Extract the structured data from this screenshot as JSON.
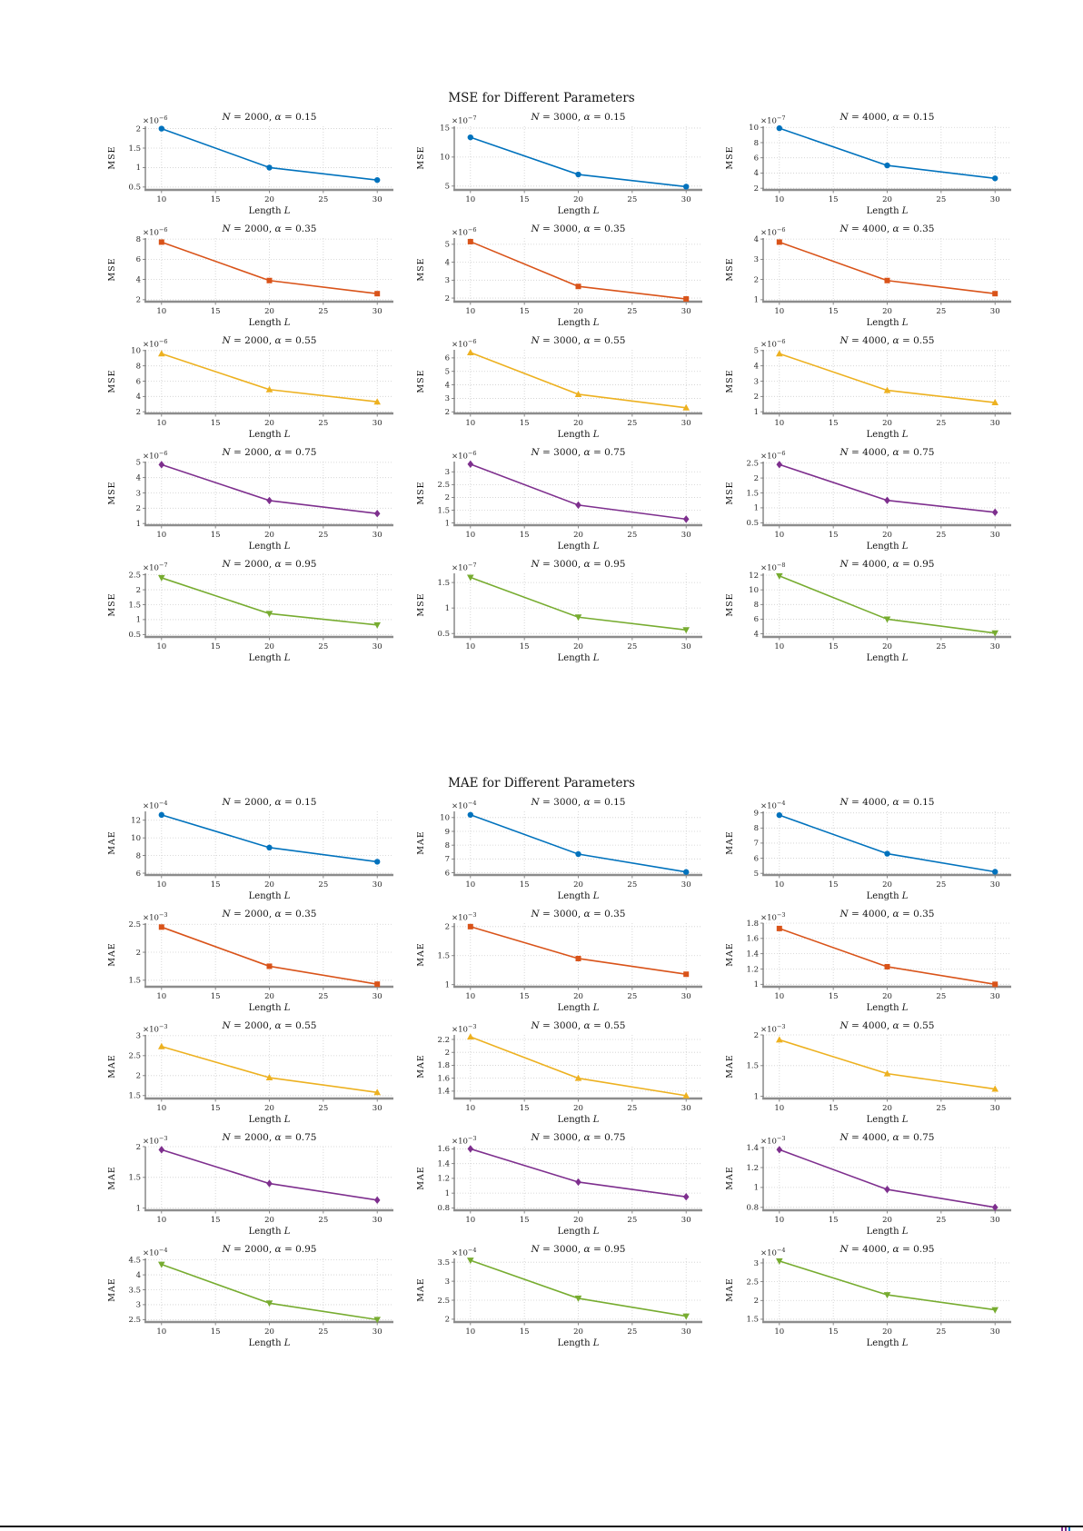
{
  "page": {
    "background": "#ffffff",
    "footer": {
      "rule_color": "#111111",
      "fragment_colors": [
        "#7E2F8E",
        "#7E2F8E",
        "#0072BD"
      ]
    }
  },
  "chart_data": [
    {
      "id": "mse",
      "type": "line",
      "title": "MSE for Different Parameters",
      "ylabel": "MSE",
      "xlabel": "Length L",
      "x": [
        10,
        20,
        30
      ],
      "xticks": [
        10,
        15,
        20,
        25,
        30
      ],
      "xlim": [
        8.5,
        31.5
      ],
      "grid": "dotted",
      "legend": "none",
      "columns": [
        "2000",
        "3000",
        "4000"
      ],
      "rows": [
        {
          "alpha": "0.15",
          "color": "#0072BD",
          "marker": "circle",
          "cells": [
            {
              "n": "2000",
              "exponent": -6,
              "ylim": [
                0.45,
                2.06
              ],
              "yticks": [
                0.5,
                1,
                1.5,
                2
              ],
              "values": [
                2.0,
                1.0,
                0.68
              ]
            },
            {
              "n": "3000",
              "exponent": -7,
              "ylim": [
                4.5,
                15.3
              ],
              "yticks": [
                5,
                10,
                15
              ],
              "values": [
                13.4,
                7.0,
                4.9
              ]
            },
            {
              "n": "4000",
              "exponent": -7,
              "ylim": [
                1.9,
                10.15
              ],
              "yticks": [
                2,
                4,
                6,
                8,
                10
              ],
              "values": [
                9.9,
                5.0,
                3.3
              ]
            }
          ]
        },
        {
          "alpha": "0.35",
          "color": "#D95319",
          "marker": "square",
          "cells": [
            {
              "n": "2000",
              "exponent": -6,
              "ylim": [
                1.9,
                8.1
              ],
              "yticks": [
                2,
                4,
                6,
                8
              ],
              "values": [
                7.7,
                3.9,
                2.6
              ]
            },
            {
              "n": "3000",
              "exponent": -6,
              "ylim": [
                1.85,
                5.35
              ],
              "yticks": [
                2,
                3,
                4,
                5
              ],
              "values": [
                5.15,
                2.65,
                1.95
              ]
            },
            {
              "n": "4000",
              "exponent": -6,
              "ylim": [
                0.95,
                4.05
              ],
              "yticks": [
                1,
                2,
                3,
                4
              ],
              "values": [
                3.85,
                1.95,
                1.3
              ]
            }
          ]
        },
        {
          "alpha": "0.55",
          "color": "#EDB120",
          "marker": "triangle-up",
          "cells": [
            {
              "n": "2000",
              "exponent": -6,
              "ylim": [
                1.9,
                10.1
              ],
              "yticks": [
                2,
                4,
                6,
                8,
                10
              ],
              "values": [
                9.6,
                4.9,
                3.3
              ]
            },
            {
              "n": "3000",
              "exponent": -6,
              "ylim": [
                1.95,
                6.6
              ],
              "yticks": [
                2,
                3,
                4,
                5,
                6
              ],
              "values": [
                6.4,
                3.3,
                2.3
              ]
            },
            {
              "n": "4000",
              "exponent": -6,
              "ylim": [
                0.95,
                5.05
              ],
              "yticks": [
                1,
                2,
                3,
                4,
                5
              ],
              "values": [
                4.8,
                2.4,
                1.6
              ]
            }
          ]
        },
        {
          "alpha": "0.75",
          "color": "#7E2F8E",
          "marker": "diamond",
          "cells": [
            {
              "n": "2000",
              "exponent": -6,
              "ylim": [
                0.95,
                5.05
              ],
              "yticks": [
                1,
                2,
                3,
                4,
                5
              ],
              "values": [
                4.85,
                2.5,
                1.65
              ]
            },
            {
              "n": "3000",
              "exponent": -6,
              "ylim": [
                0.95,
                3.4
              ],
              "yticks": [
                1,
                1.5,
                2,
                2.5,
                3
              ],
              "values": [
                3.3,
                1.7,
                1.15
              ]
            },
            {
              "n": "4000",
              "exponent": -6,
              "ylim": [
                0.45,
                2.55
              ],
              "yticks": [
                0.5,
                1,
                1.5,
                2,
                2.5
              ],
              "values": [
                2.45,
                1.25,
                0.85
              ]
            }
          ]
        },
        {
          "alpha": "0.95",
          "color": "#77AC30",
          "marker": "triangle-down",
          "cells": [
            {
              "n": "2000",
              "exponent": -7,
              "ylim": [
                0.45,
                2.55
              ],
              "yticks": [
                0.5,
                1,
                1.5,
                2,
                2.5
              ],
              "values": [
                2.4,
                1.2,
                0.82
              ]
            },
            {
              "n": "3000",
              "exponent": -7,
              "ylim": [
                0.45,
                1.68
              ],
              "yticks": [
                0.5,
                1,
                1.5
              ],
              "values": [
                1.6,
                0.82,
                0.57
              ]
            },
            {
              "n": "4000",
              "exponent": -8,
              "ylim": [
                3.7,
                12.25
              ],
              "yticks": [
                4,
                6,
                8,
                10,
                12
              ],
              "values": [
                11.9,
                6.0,
                4.1
              ]
            }
          ]
        }
      ]
    },
    {
      "id": "mae",
      "type": "line",
      "title": "MAE for Different Parameters",
      "ylabel": "MAE",
      "xlabel": "Length L",
      "x": [
        10,
        20,
        30
      ],
      "xticks": [
        10,
        15,
        20,
        25,
        30
      ],
      "xlim": [
        8.5,
        31.5
      ],
      "grid": "dotted",
      "legend": "none",
      "columns": [
        "2000",
        "3000",
        "4000"
      ],
      "rows": [
        {
          "alpha": "0.15",
          "color": "#0072BD",
          "marker": "circle",
          "cells": [
            {
              "n": "2000",
              "exponent": -4,
              "ylim": [
                5.9,
                13.0
              ],
              "yticks": [
                6,
                8,
                10,
                12
              ],
              "values": [
                12.6,
                8.9,
                7.3
              ]
            },
            {
              "n": "3000",
              "exponent": -4,
              "ylim": [
                5.9,
                10.45
              ],
              "yticks": [
                6,
                7,
                8,
                9,
                10
              ],
              "values": [
                10.2,
                7.35,
                6.05
              ]
            },
            {
              "n": "4000",
              "exponent": -4,
              "ylim": [
                4.95,
                9.1
              ],
              "yticks": [
                5,
                6,
                7,
                8,
                9
              ],
              "values": [
                8.85,
                6.3,
                5.1
              ]
            }
          ]
        },
        {
          "alpha": "0.35",
          "color": "#D95319",
          "marker": "square",
          "cells": [
            {
              "n": "2000",
              "exponent": -3,
              "ylim": [
                1.4,
                2.52
              ],
              "yticks": [
                1.5,
                2,
                2.5
              ],
              "values": [
                2.45,
                1.75,
                1.43
              ]
            },
            {
              "n": "3000",
              "exponent": -3,
              "ylim": [
                0.98,
                2.06
              ],
              "yticks": [
                1,
                1.5,
                2
              ],
              "values": [
                2.0,
                1.45,
                1.18
              ]
            },
            {
              "n": "4000",
              "exponent": -3,
              "ylim": [
                0.98,
                1.8
              ],
              "yticks": [
                1,
                1.2,
                1.4,
                1.6,
                1.8
              ],
              "values": [
                1.73,
                1.23,
                1.0
              ]
            }
          ]
        },
        {
          "alpha": "0.55",
          "color": "#EDB120",
          "marker": "triangle-up",
          "cells": [
            {
              "n": "2000",
              "exponent": -3,
              "ylim": [
                1.45,
                3.02
              ],
              "yticks": [
                1.5,
                2,
                2.5,
                3
              ],
              "values": [
                2.73,
                1.95,
                1.58
              ]
            },
            {
              "n": "3000",
              "exponent": -3,
              "ylim": [
                1.3,
                2.27
              ],
              "yticks": [
                1.4,
                1.6,
                1.8,
                2,
                2.2
              ],
              "values": [
                2.24,
                1.6,
                1.33
              ]
            },
            {
              "n": "4000",
              "exponent": -3,
              "ylim": [
                0.98,
                2.0
              ],
              "yticks": [
                1,
                1.5,
                2
              ],
              "values": [
                1.92,
                1.37,
                1.12
              ]
            }
          ]
        },
        {
          "alpha": "0.75",
          "color": "#7E2F8E",
          "marker": "diamond",
          "cells": [
            {
              "n": "2000",
              "exponent": -3,
              "ylim": [
                0.98,
                2.0
              ],
              "yticks": [
                1,
                1.5,
                2
              ],
              "values": [
                1.95,
                1.4,
                1.13
              ]
            },
            {
              "n": "3000",
              "exponent": -3,
              "ylim": [
                0.78,
                1.63
              ],
              "yticks": [
                0.8,
                1,
                1.2,
                1.4,
                1.6
              ],
              "values": [
                1.6,
                1.15,
                0.95
              ]
            },
            {
              "n": "4000",
              "exponent": -3,
              "ylim": [
                0.78,
                1.41
              ],
              "yticks": [
                0.8,
                1,
                1.2,
                1.4
              ],
              "values": [
                1.38,
                0.98,
                0.8
              ]
            }
          ]
        },
        {
          "alpha": "0.95",
          "color": "#77AC30",
          "marker": "triangle-down",
          "cells": [
            {
              "n": "2000",
              "exponent": -4,
              "ylim": [
                2.45,
                4.55
              ],
              "yticks": [
                2.5,
                3,
                3.5,
                4,
                4.5
              ],
              "values": [
                4.35,
                3.05,
                2.5
              ]
            },
            {
              "n": "3000",
              "exponent": -4,
              "ylim": [
                1.95,
                3.6
              ],
              "yticks": [
                2,
                2.5,
                3,
                3.5
              ],
              "values": [
                3.55,
                2.55,
                2.08
              ]
            },
            {
              "n": "4000",
              "exponent": -4,
              "ylim": [
                1.45,
                3.12
              ],
              "yticks": [
                1.5,
                2,
                2.5,
                3
              ],
              "values": [
                3.05,
                2.15,
                1.75
              ]
            }
          ]
        }
      ]
    }
  ]
}
